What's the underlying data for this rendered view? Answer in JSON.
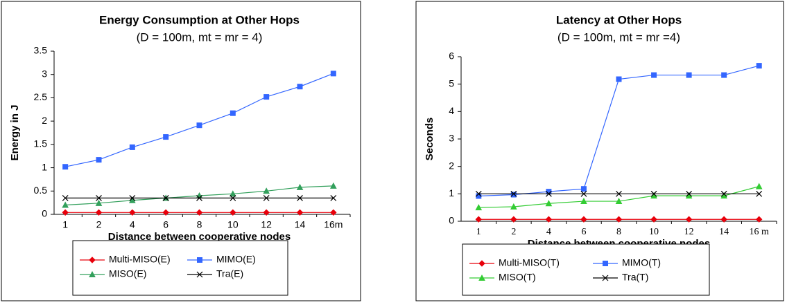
{
  "chart_data": [
    {
      "type": "line",
      "title": "Energy Consumption at Other Hops",
      "subtitle": "(D = 100m, mt = mr = 4)",
      "x_label": "Distance between cooperative nodes",
      "y_label": "Energy in J",
      "categories": [
        "1",
        "2",
        "4",
        "6",
        "8",
        "10",
        "12",
        "14",
        "16m"
      ],
      "ylim": [
        0,
        3.5
      ],
      "yticks": [
        0,
        0.5,
        1,
        1.5,
        2,
        2.5,
        3,
        3.5
      ],
      "grid": false,
      "series": [
        {
          "name": "Multi-MISO(E)",
          "color": "#e8000b",
          "marker": "diamond",
          "values": [
            0.04,
            0.04,
            0.04,
            0.04,
            0.04,
            0.04,
            0.04,
            0.04,
            0.04
          ]
        },
        {
          "name": "MIMO(E)",
          "color": "#3366ff",
          "marker": "square",
          "values": [
            1.02,
            1.17,
            1.44,
            1.66,
            1.91,
            2.17,
            2.52,
            2.74,
            3.02
          ]
        },
        {
          "name": "MISO(E)",
          "color": "#33a05c",
          "marker": "triangle",
          "values": [
            0.2,
            0.24,
            0.3,
            0.35,
            0.4,
            0.44,
            0.5,
            0.58,
            0.61
          ]
        },
        {
          "name": "Tra(E)",
          "color": "#000000",
          "marker": "x",
          "values": [
            0.35,
            0.35,
            0.35,
            0.35,
            0.35,
            0.35,
            0.35,
            0.35,
            0.35
          ]
        }
      ]
    },
    {
      "type": "line",
      "title": "Latency at Other Hops",
      "subtitle": "(D = 100m, mt = mr =4)",
      "x_label": "Distance between cooperative nodes",
      "y_label": "Seconds",
      "categories": [
        "1",
        "2",
        "4",
        "6",
        "8",
        "10",
        "12",
        "14",
        "16 m"
      ],
      "ylim": [
        0,
        6
      ],
      "yticks": [
        0,
        1,
        2,
        3,
        4,
        5,
        6
      ],
      "grid": false,
      "series": [
        {
          "name": "Multi-MISO(T)",
          "color": "#e8000b",
          "marker": "diamond",
          "values": [
            0.07,
            0.07,
            0.07,
            0.07,
            0.07,
            0.07,
            0.07,
            0.07,
            0.07
          ]
        },
        {
          "name": "MIMO(T)",
          "color": "#3366ff",
          "marker": "square",
          "values": [
            0.92,
            0.97,
            1.08,
            1.18,
            5.18,
            5.33,
            5.33,
            5.33,
            5.67
          ]
        },
        {
          "name": "MISO(T)",
          "color": "#33cc33",
          "marker": "triangle",
          "values": [
            0.5,
            0.53,
            0.65,
            0.73,
            0.73,
            0.93,
            0.93,
            0.93,
            1.27
          ]
        },
        {
          "name": "Tra(T)",
          "color": "#000000",
          "marker": "x",
          "values": [
            1,
            1,
            1,
            1,
            1,
            1,
            1,
            1,
            1
          ]
        }
      ]
    }
  ]
}
